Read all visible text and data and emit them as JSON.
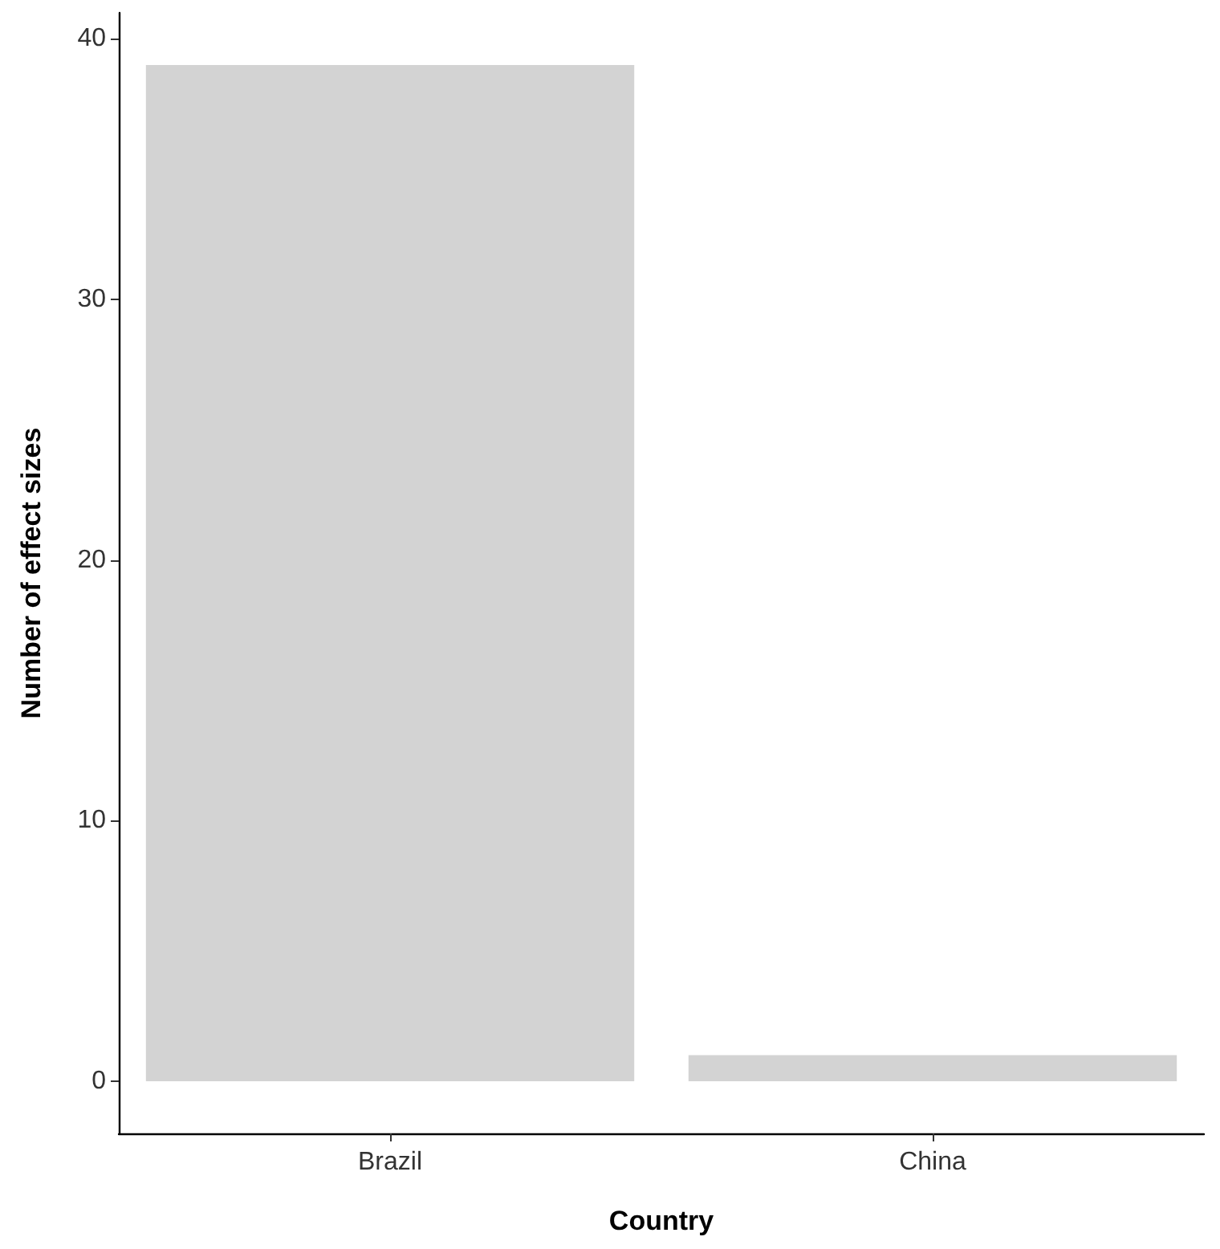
{
  "chart_data": {
    "type": "bar",
    "xlabel": "Country",
    "ylabel": "Number of effect sizes",
    "categories": [
      "Brazil",
      "China"
    ],
    "values": [
      39,
      1
    ],
    "color": "#d3d3d3",
    "ylim": [
      -2,
      41
    ],
    "yticks": [
      0,
      10,
      20,
      30,
      40
    ],
    "grid": false
  }
}
